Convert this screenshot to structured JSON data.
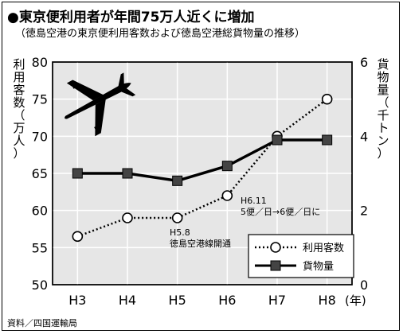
{
  "header": {
    "title": "●東京便利用者が年間75万人近くに増加",
    "subtitle": "（徳島空港の東京便利用客数および徳島空港総貨物量の推移）"
  },
  "footer": {
    "source": "資料／四国運輸局"
  },
  "axes": {
    "left_label": "利用客数（万人）",
    "right_label": "貨物量（千トン）",
    "x_unit": "(年)"
  },
  "annotations": {
    "h58": [
      "H5.8",
      "徳島空港線開通"
    ],
    "h611": [
      "H6.11",
      "5便／日→6便／日に"
    ]
  },
  "colors": {
    "plot_bg": "#e6e6e6",
    "grid": "#ffffff",
    "line": "#000000",
    "marker_fill": "#444444"
  },
  "icons": {
    "plane": "airplane-icon"
  },
  "chart_data": {
    "type": "line",
    "categories": [
      "H3",
      "H4",
      "H5",
      "H6",
      "H7",
      "H8"
    ],
    "left_ylim": [
      50,
      80
    ],
    "left_yticks": [
      "50",
      "55",
      "60",
      "65",
      "70",
      "75",
      "80"
    ],
    "right_ylim": [
      0,
      6
    ],
    "right_yticks": [
      "0",
      "2",
      "4",
      "6"
    ],
    "grid": true,
    "legend_position": "bottom-right",
    "series": [
      {
        "name": "利用客数",
        "axis": "left",
        "style": "dotted-open-circle",
        "values": [
          56.5,
          59,
          59,
          62,
          70,
          75
        ]
      },
      {
        "name": "貨物量",
        "axis": "right",
        "style": "solid-filled-square",
        "values": [
          3.0,
          3.0,
          2.8,
          3.2,
          3.9,
          3.9
        ]
      }
    ]
  }
}
